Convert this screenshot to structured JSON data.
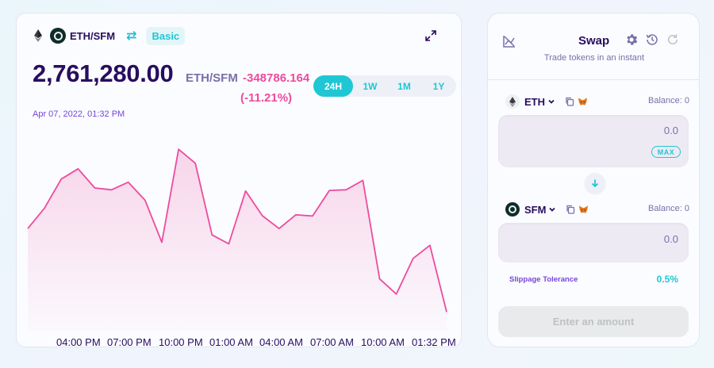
{
  "chart_panel": {
    "pair_label": "ETH/SFM",
    "mode_button": "Basic",
    "price": "2,761,280.00",
    "price_pair": "ETH/SFM",
    "price_change": "-348786.164",
    "price_change_pct": "(-11.21%)",
    "date": "Apr 07, 2022, 01:32 PM",
    "ranges": [
      "24H",
      "1W",
      "1M",
      "1Y"
    ],
    "active_range": "24H",
    "colors": {
      "line": "#ed4b9e",
      "accent": "#1fc7d4",
      "text": "#280d5f"
    }
  },
  "chart_data": {
    "type": "area",
    "x_tick_labels": [
      "04:00 PM",
      "07:00 PM",
      "10:00 PM",
      "01:00 AM",
      "04:00 AM",
      "07:00 AM",
      "10:00 AM",
      "01:32 PM"
    ],
    "values": [
      3035000,
      3102000,
      3197000,
      3231000,
      3168000,
      3162000,
      3187000,
      3128000,
      2990000,
      3295000,
      3249000,
      3014000,
      2985000,
      3158000,
      3077000,
      3035000,
      3080000,
      3076000,
      3160000,
      3162000,
      3193000,
      2870000,
      2820000,
      2937000,
      2980000,
      2761280
    ],
    "ylim": [
      2700000,
      3350000
    ],
    "grid": false
  },
  "swap_panel": {
    "title": "Swap",
    "subtitle": "Trade tokens in an instant",
    "from": {
      "symbol": "ETH",
      "balance": "Balance: 0",
      "amount": "0.0",
      "max_label": "MAX"
    },
    "to": {
      "symbol": "SFM",
      "balance": "Balance: 0",
      "amount": "0.0"
    },
    "slippage_label": "Slippage Tolerance",
    "slippage_value": "0.5%",
    "action_button": "Enter an amount",
    "icons": [
      "chart-disabled-icon",
      "gear-icon",
      "history-icon",
      "refresh-icon",
      "chevron-down-icon",
      "copy-icon",
      "metamask-fox-icon",
      "arrow-down-icon"
    ]
  }
}
